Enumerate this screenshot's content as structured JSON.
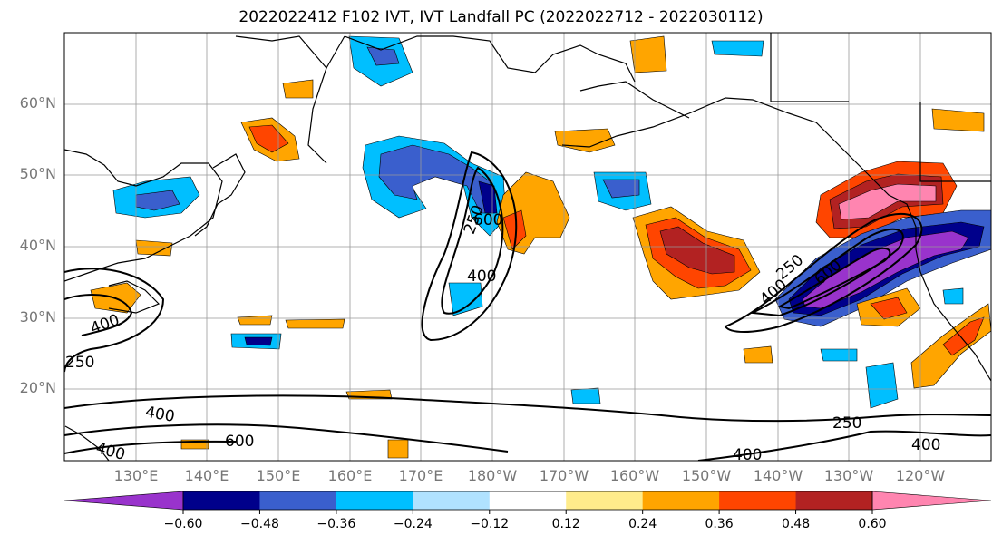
{
  "title": "2022022412 F102 IVT, IVT Landfall PC (2022022712 - 2022030112)",
  "lat_labels": [
    "60°N",
    "50°N",
    "40°N",
    "30°N",
    "20°N"
  ],
  "lon_labels": [
    "130°E",
    "140°E",
    "150°E",
    "160°E",
    "170°E",
    "180°W",
    "170°W",
    "160°W",
    "150°W",
    "140°W",
    "130°W",
    "120°W"
  ],
  "contour_labels": [
    "250",
    "400",
    "400",
    "250",
    "400",
    "600",
    "250",
    "400",
    "400",
    "600",
    "250",
    "400",
    "400",
    "600"
  ],
  "colorbar": {
    "colors": [
      "#9933CC",
      "#00008B",
      "#3A5FCD",
      "#00BFFF",
      "#B0E2FF",
      "#FFFFFF",
      "#FFEC8B",
      "#FFA500",
      "#FF4500",
      "#B22222",
      "#FF85B0"
    ],
    "tick_labels": [
      "−0.60",
      "−0.48",
      "−0.36",
      "−0.24",
      "−0.12",
      "0.12",
      "0.24",
      "0.36",
      "0.48",
      "0.60"
    ]
  }
}
